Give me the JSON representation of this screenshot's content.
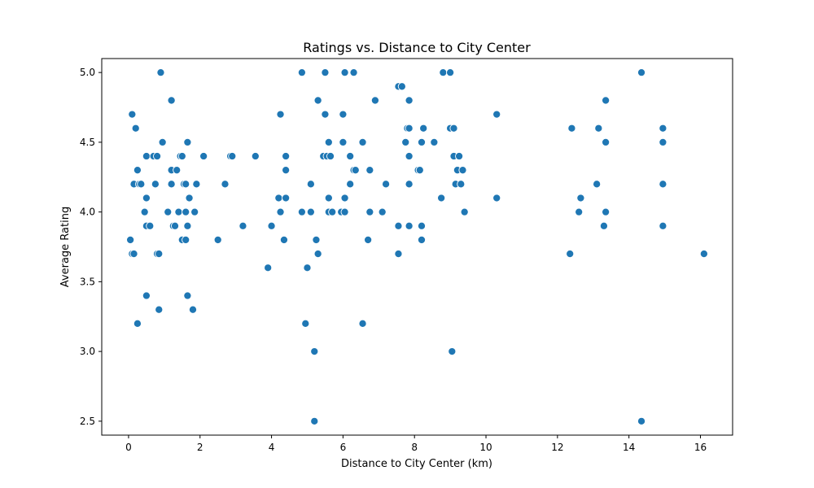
{
  "chart_data": {
    "type": "scatter",
    "title": "Ratings vs. Distance to City Center",
    "xlabel": "Distance to City Center (km)",
    "ylabel": "Average Rating",
    "xlim": [
      -0.75,
      16.9
    ],
    "ylim": [
      2.4,
      5.1
    ],
    "xticks": [
      0,
      2,
      4,
      6,
      8,
      10,
      12,
      14,
      16
    ],
    "xtick_labels": [
      "0",
      "2",
      "4",
      "6",
      "8",
      "10",
      "12",
      "14",
      "16"
    ],
    "yticks": [
      2.5,
      3.0,
      3.5,
      4.0,
      4.5,
      5.0
    ],
    "ytick_labels": [
      "2.5",
      "3.0",
      "3.5",
      "4.0",
      "4.5",
      "5.0"
    ],
    "grid": false,
    "point_color": "#1f77b4",
    "points": [
      [
        0.05,
        3.8
      ],
      [
        0.1,
        3.7
      ],
      [
        0.15,
        3.7
      ],
      [
        0.1,
        4.7
      ],
      [
        0.15,
        4.2
      ],
      [
        0.2,
        4.6
      ],
      [
        0.25,
        4.3
      ],
      [
        0.3,
        4.2
      ],
      [
        0.35,
        4.2
      ],
      [
        0.25,
        3.2
      ],
      [
        0.45,
        4.0
      ],
      [
        0.5,
        4.1
      ],
      [
        0.5,
        4.4
      ],
      [
        0.5,
        3.9
      ],
      [
        0.5,
        3.4
      ],
      [
        0.6,
        3.9
      ],
      [
        0.7,
        4.4
      ],
      [
        0.75,
        4.2
      ],
      [
        0.8,
        4.4
      ],
      [
        0.8,
        3.7
      ],
      [
        0.85,
        3.7
      ],
      [
        0.85,
        3.3
      ],
      [
        0.9,
        5.0
      ],
      [
        0.95,
        4.5
      ],
      [
        1.1,
        4.0
      ],
      [
        1.2,
        4.3
      ],
      [
        1.2,
        4.8
      ],
      [
        1.2,
        4.2
      ],
      [
        1.25,
        3.9
      ],
      [
        1.3,
        3.9
      ],
      [
        1.35,
        4.3
      ],
      [
        1.4,
        4.0
      ],
      [
        1.45,
        4.4
      ],
      [
        1.5,
        4.4
      ],
      [
        1.5,
        3.8
      ],
      [
        1.55,
        4.2
      ],
      [
        1.6,
        4.0
      ],
      [
        1.6,
        4.2
      ],
      [
        1.6,
        3.8
      ],
      [
        1.65,
        3.9
      ],
      [
        1.65,
        3.4
      ],
      [
        1.65,
        4.5
      ],
      [
        1.7,
        4.1
      ],
      [
        1.8,
        3.3
      ],
      [
        1.85,
        4.0
      ],
      [
        1.9,
        4.2
      ],
      [
        2.1,
        4.4
      ],
      [
        2.5,
        3.8
      ],
      [
        2.7,
        4.2
      ],
      [
        2.85,
        4.4
      ],
      [
        2.9,
        4.4
      ],
      [
        3.2,
        3.9
      ],
      [
        3.55,
        4.4
      ],
      [
        3.9,
        3.6
      ],
      [
        4.0,
        3.9
      ],
      [
        4.2,
        4.1
      ],
      [
        4.25,
        4.0
      ],
      [
        4.25,
        4.7
      ],
      [
        4.35,
        3.8
      ],
      [
        4.4,
        4.3
      ],
      [
        4.4,
        4.1
      ],
      [
        4.4,
        4.4
      ],
      [
        4.85,
        5.0
      ],
      [
        4.85,
        4.0
      ],
      [
        4.95,
        3.2
      ],
      [
        5.0,
        3.6
      ],
      [
        5.1,
        4.0
      ],
      [
        5.1,
        4.2
      ],
      [
        5.2,
        3.0
      ],
      [
        5.2,
        2.5
      ],
      [
        5.25,
        3.8
      ],
      [
        5.3,
        3.7
      ],
      [
        5.3,
        4.8
      ],
      [
        5.45,
        4.4
      ],
      [
        5.5,
        4.7
      ],
      [
        5.5,
        5.0
      ],
      [
        5.55,
        4.4
      ],
      [
        5.6,
        4.1
      ],
      [
        5.6,
        4.5
      ],
      [
        5.6,
        4.0
      ],
      [
        5.65,
        4.4
      ],
      [
        5.7,
        4.0
      ],
      [
        5.95,
        4.0
      ],
      [
        6.0,
        4.5
      ],
      [
        6.0,
        4.7
      ],
      [
        6.05,
        4.1
      ],
      [
        6.05,
        4.0
      ],
      [
        6.05,
        5.0
      ],
      [
        6.2,
        4.2
      ],
      [
        6.2,
        4.4
      ],
      [
        6.3,
        5.0
      ],
      [
        6.3,
        4.3
      ],
      [
        6.35,
        4.3
      ],
      [
        6.55,
        4.5
      ],
      [
        6.55,
        3.2
      ],
      [
        6.7,
        3.8
      ],
      [
        6.75,
        4.0
      ],
      [
        6.75,
        4.3
      ],
      [
        6.9,
        4.8
      ],
      [
        7.1,
        4.0
      ],
      [
        7.2,
        4.2
      ],
      [
        7.55,
        4.9
      ],
      [
        7.55,
        3.7
      ],
      [
        7.55,
        3.9
      ],
      [
        7.65,
        4.9
      ],
      [
        7.75,
        4.5
      ],
      [
        7.8,
        4.6
      ],
      [
        7.85,
        4.6
      ],
      [
        7.85,
        4.8
      ],
      [
        7.85,
        4.4
      ],
      [
        7.85,
        4.2
      ],
      [
        7.85,
        3.9
      ],
      [
        8.1,
        4.3
      ],
      [
        8.15,
        4.3
      ],
      [
        8.2,
        4.5
      ],
      [
        8.2,
        3.9
      ],
      [
        8.2,
        3.8
      ],
      [
        8.25,
        4.6
      ],
      [
        8.55,
        4.5
      ],
      [
        8.75,
        4.1
      ],
      [
        8.8,
        5.0
      ],
      [
        9.0,
        5.0
      ],
      [
        9.0,
        4.6
      ],
      [
        9.05,
        3.0
      ],
      [
        9.1,
        4.6
      ],
      [
        9.1,
        4.4
      ],
      [
        9.15,
        4.2
      ],
      [
        9.2,
        4.3
      ],
      [
        9.25,
        4.4
      ],
      [
        9.3,
        4.2
      ],
      [
        9.35,
        4.3
      ],
      [
        9.4,
        4.0
      ],
      [
        10.3,
        4.7
      ],
      [
        10.3,
        4.1
      ],
      [
        12.35,
        3.7
      ],
      [
        12.4,
        4.6
      ],
      [
        12.6,
        4.0
      ],
      [
        12.65,
        4.1
      ],
      [
        13.1,
        4.2
      ],
      [
        13.15,
        4.6
      ],
      [
        13.3,
        3.9
      ],
      [
        13.35,
        4.0
      ],
      [
        13.35,
        4.5
      ],
      [
        13.35,
        4.8
      ],
      [
        14.35,
        5.0
      ],
      [
        14.35,
        2.5
      ],
      [
        14.95,
        4.6
      ],
      [
        14.95,
        4.5
      ],
      [
        14.95,
        4.2
      ],
      [
        14.95,
        3.9
      ],
      [
        16.1,
        3.7
      ]
    ]
  }
}
